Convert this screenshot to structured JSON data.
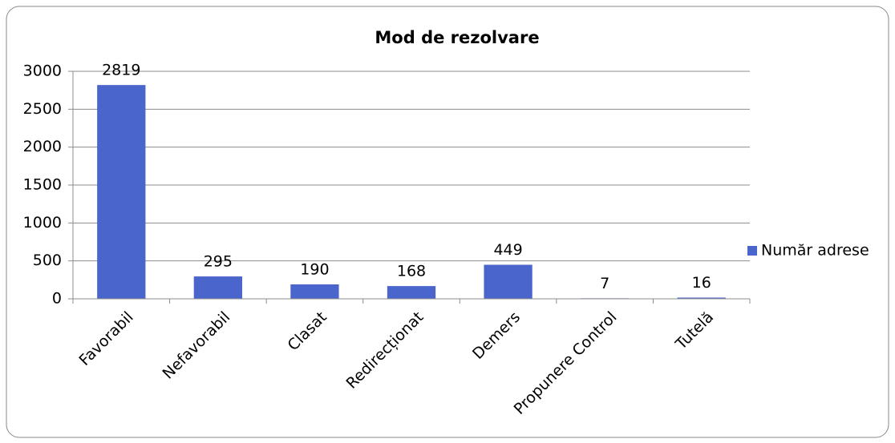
{
  "chart_data": {
    "type": "bar",
    "title": "Mod de rezolvare",
    "categories": [
      "Favorabil",
      "Nefavorabil",
      "Clasat",
      "Redirecționat",
      "Demers",
      "Propunere Control",
      "Tutelă"
    ],
    "series": [
      {
        "name": "Număr adrese",
        "color": "#4a66cc",
        "values": [
          2819,
          295,
          190,
          168,
          449,
          7,
          16
        ]
      }
    ],
    "ylim": [
      0,
      3000
    ],
    "yticks": [
      0,
      500,
      1000,
      1500,
      2000,
      2500,
      3000
    ],
    "grid": true,
    "legend": "right"
  }
}
